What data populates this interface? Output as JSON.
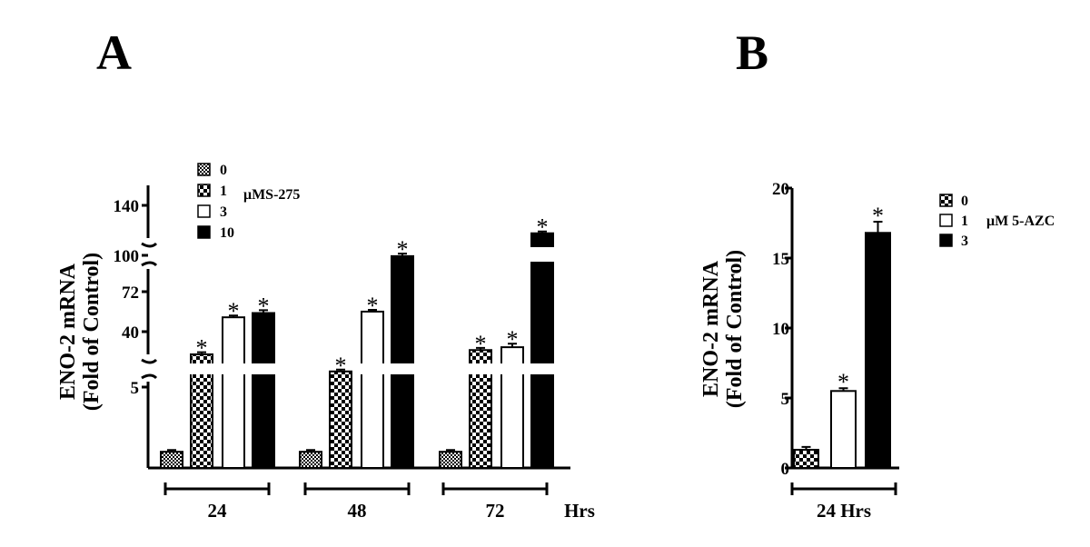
{
  "chart_data": [
    {
      "panel": "A",
      "type": "bar",
      "ylabel_lines": [
        "ENO-2 mRNA",
        "(Fold of Control)"
      ],
      "xlabel": "Hrs",
      "categories": [
        "24",
        "48",
        "72"
      ],
      "legend_title": "μMS-275",
      "y_axis_broken": true,
      "y_segments": [
        {
          "ylim": [
            0,
            5
          ],
          "ticks": [
            "5"
          ]
        },
        {
          "ylim": [
            5,
            72
          ],
          "ticks": [
            "40",
            "72"
          ]
        },
        {
          "ylim": [
            72,
            140
          ],
          "ticks": [
            "100",
            "140"
          ]
        }
      ],
      "series": [
        {
          "name": "0",
          "pattern": "fine-check",
          "values": [
            1,
            1,
            1
          ],
          "errors": [
            0.05,
            0.1,
            0.07
          ],
          "significant": [
            false,
            false,
            false
          ]
        },
        {
          "name": "1",
          "pattern": "coarse-check",
          "values": [
            28,
            16,
            31
          ],
          "errors": [
            1.5,
            1.0,
            1.5
          ],
          "significant": [
            true,
            true,
            true
          ]
        },
        {
          "name": "3",
          "pattern": "white",
          "values": [
            54,
            58,
            33
          ],
          "errors": [
            0.8,
            1.0,
            2.5
          ],
          "significant": [
            true,
            true,
            true
          ]
        },
        {
          "name": "10",
          "pattern": "black",
          "values": [
            57,
            100,
            118
          ],
          "errors": [
            2.0,
            2.0,
            1.0
          ],
          "significant": [
            true,
            true,
            true
          ]
        }
      ],
      "annotation": "*"
    },
    {
      "panel": "B",
      "type": "bar",
      "ylabel_lines": [
        "ENO-2 mRNA",
        "(Fold of Control)"
      ],
      "categories": [
        "24 Hrs"
      ],
      "legend_title": "μM 5-AZC",
      "ylim": [
        0,
        20
      ],
      "yticks": [
        "0",
        "5",
        "10",
        "15",
        "20"
      ],
      "series": [
        {
          "name": "0",
          "pattern": "coarse-check",
          "values": [
            1.3
          ],
          "errors": [
            0.2
          ],
          "significant": [
            false
          ]
        },
        {
          "name": "1",
          "pattern": "white",
          "values": [
            5.5
          ],
          "errors": [
            0.2
          ],
          "significant": [
            true
          ]
        },
        {
          "name": "3",
          "pattern": "black",
          "values": [
            16.8
          ],
          "errors": [
            0.8
          ],
          "significant": [
            true
          ]
        }
      ],
      "annotation": "*"
    }
  ]
}
